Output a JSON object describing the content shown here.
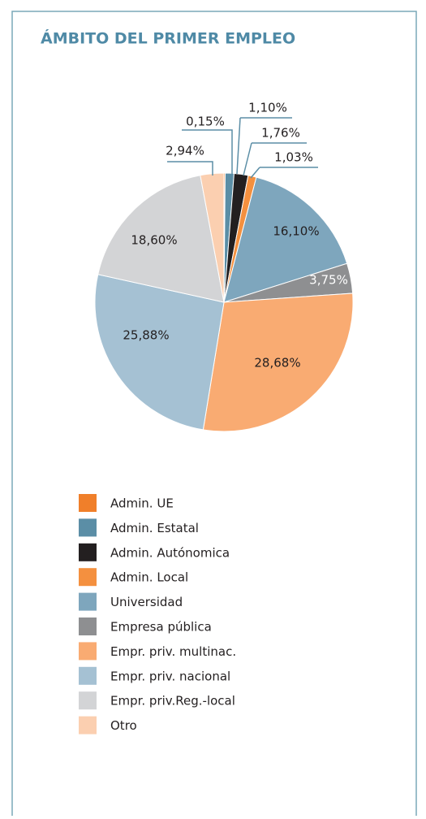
{
  "chart_data": {
    "type": "pie",
    "title": "ÁMBITO DEL PRIMER EMPLEO",
    "categories": [
      "Admin. UE",
      "Admin. Estatal",
      "Admin. Autónomica",
      "Admin. Local",
      "Universidad",
      "Empresa pública",
      "Empr. priv. multinac.",
      "Empr. priv. nacional",
      "Empr. priv.Reg.-local",
      "Otro"
    ],
    "values": [
      0.15,
      1.1,
      1.76,
      1.03,
      16.1,
      3.75,
      28.68,
      25.88,
      18.6,
      2.94
    ],
    "value_labels": [
      "0,15%",
      "1,10%",
      "1,76%",
      "1,03%",
      "16,10%",
      "3,75%",
      "28,68%",
      "25,88%",
      "18,60%",
      "2,94%"
    ],
    "colors": [
      "#f07f2a",
      "#5b8ea6",
      "#231f20",
      "#f4903f",
      "#7ea6bd",
      "#8e8f91",
      "#f9ab72",
      "#a5c1d3",
      "#d3d4d6",
      "#fbcfb0"
    ],
    "legend": "bottom-left"
  }
}
